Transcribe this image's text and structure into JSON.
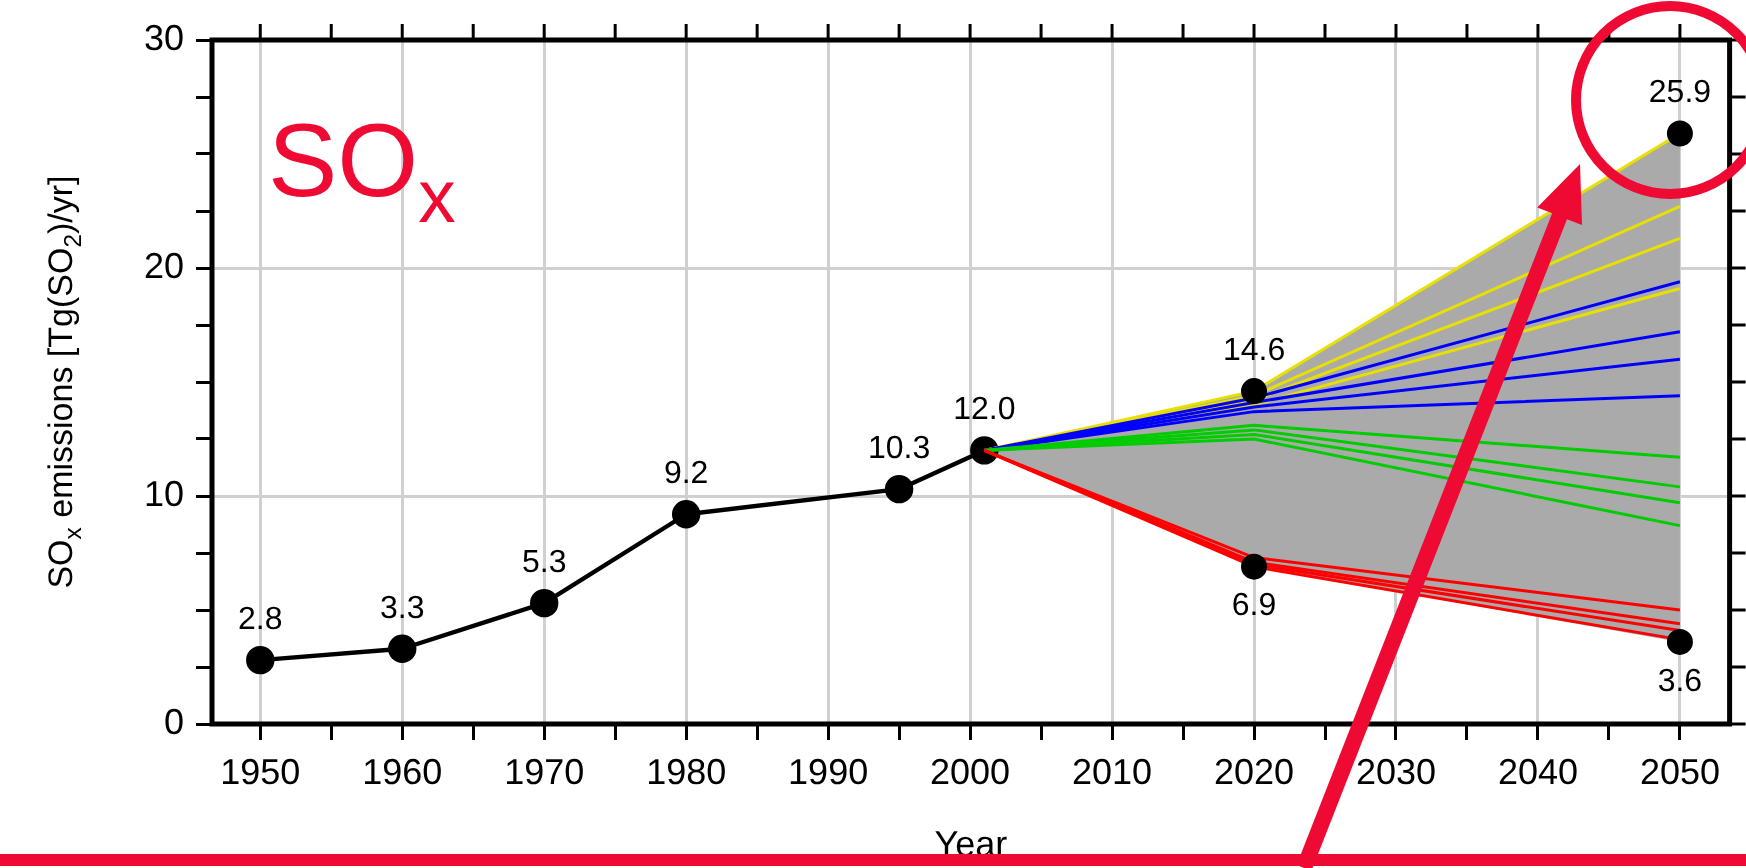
{
  "chart_data": {
    "type": "line",
    "xlabel": "Year",
    "ylabel": "SO$_{x}$ emissions [Tg(SO$_{2}$)/yr]",
    "annotations": [
      "SO$_{x}$"
    ],
    "xlim": [
      1946.6,
      2053.5
    ],
    "xticks": [
      1950,
      {
        "value": 1955,
        "label": null
      },
      1960,
      {
        "value": 1965,
        "label": null
      },
      1970,
      {
        "value": 1975,
        "label": null
      },
      1980,
      {
        "value": 1985,
        "label": null
      },
      1990,
      {
        "value": 1995,
        "label": null
      },
      2000,
      {
        "value": 2005,
        "label": null
      },
      2010,
      {
        "value": 2015,
        "label": null
      },
      2020,
      {
        "value": 2025,
        "label": null
      },
      2030,
      {
        "value": 2035,
        "label": null
      },
      2040,
      {
        "value": 2045,
        "label": null
      },
      2050
    ],
    "ylim": [
      0,
      30
    ],
    "yticks": [
      0,
      {
        "value": 2.5,
        "label": null
      },
      {
        "value": 5,
        "label": null
      },
      {
        "value": 7.5,
        "label": null
      },
      10,
      {
        "value": 12.5,
        "label": null
      },
      {
        "value": 15,
        "label": null
      },
      {
        "value": 17.5,
        "label": null
      },
      20,
      {
        "value": 22.5,
        "label": null
      },
      {
        "value": 25,
        "label": null
      },
      {
        "value": 27.5,
        "label": null
      },
      30
    ],
    "grid": true,
    "marker": "circle",
    "line_style": "solid",
    "series": [
      {
        "type": "line",
        "color": "#000000",
        "x": [
          1950,
          1960,
          1970,
          1980,
          1995,
          2001
        ],
        "values": [
          2.8,
          3.3,
          5.3,
          9.2,
          10.3,
          12.0
        ],
        "value_labels": [
          "2.8",
          "3.3",
          "5.3",
          "9.2",
          "10.3",
          "12.0"
        ]
      },
      {
        "marker": "none",
        "color": "#e8e000",
        "x": [
          2001,
          2020,
          2050
        ],
        "values": [
          12.0,
          14.6,
          25.9
        ],
        "lower": [
          12.0,
          6.9,
          3.6
        ],
        "upper": [
          12.0,
          14.6,
          25.9
        ]
      },
      {
        "type": "line",
        "marker": "none",
        "color": "#e8e000",
        "x": [
          2001,
          2020,
          2050
        ],
        "values": [
          12.0,
          14.4,
          22.7
        ]
      },
      {
        "type": "line",
        "marker": "none",
        "color": "#e8e000",
        "x": [
          2001,
          2020,
          2050
        ],
        "values": [
          12.0,
          14.2,
          21.3
        ]
      },
      {
        "type": "line",
        "marker": "none",
        "color": "#e8e000",
        "x": [
          2001,
          2020,
          2050
        ],
        "values": [
          12.0,
          14.0,
          19.1
        ]
      },
      {
        "type": "line",
        "marker": "none",
        "color": "#0000ff",
        "x": [
          2001,
          2020,
          2050
        ],
        "values": [
          12.0,
          14.3,
          19.4
        ]
      },
      {
        "type": "line",
        "marker": "none",
        "color": "#0000ff",
        "x": [
          2001,
          2020,
          2050
        ],
        "values": [
          12.0,
          14.1,
          17.2
        ]
      },
      {
        "type": "line",
        "marker": "none",
        "color": "#0000ff",
        "x": [
          2001,
          2020,
          2050
        ],
        "values": [
          12.0,
          13.9,
          16.0
        ]
      },
      {
        "type": "line",
        "marker": "none",
        "color": "#0000ff",
        "x": [
          2001,
          2020,
          2050
        ],
        "values": [
          12.0,
          13.7,
          14.4
        ]
      },
      {
        "type": "line",
        "marker": "none",
        "color": "#00cc00",
        "x": [
          2001,
          2020,
          2050
        ],
        "values": [
          12.0,
          13.1,
          11.7
        ]
      },
      {
        "type": "line",
        "marker": "none",
        "color": "#00cc00",
        "x": [
          2001,
          2020,
          2050
        ],
        "values": [
          12.0,
          12.9,
          10.4
        ]
      },
      {
        "type": "line",
        "marker": "none",
        "color": "#00cc00",
        "x": [
          2001,
          2020,
          2050
        ],
        "values": [
          12.0,
          12.7,
          9.7
        ]
      },
      {
        "type": "line",
        "marker": "none",
        "color": "#00cc00",
        "x": [
          2001,
          2020,
          2050
        ],
        "values": [
          12.0,
          12.5,
          8.7
        ]
      },
      {
        "type": "line",
        "marker": "none",
        "color": "#ff0000",
        "x": [
          2001,
          2020,
          2050
        ],
        "values": [
          12.0,
          7.3,
          5.0
        ]
      },
      {
        "type": "line",
        "marker": "none",
        "color": "#ff0000",
        "x": [
          2001,
          2020,
          2050
        ],
        "values": [
          12.0,
          7.1,
          4.4
        ]
      },
      {
        "type": "line",
        "marker": "none",
        "color": "#ff0000",
        "x": [
          2001,
          2020,
          2050
        ],
        "values": [
          12.0,
          7.0,
          4.1
        ]
      },
      {
        "type": "line",
        "marker": "none",
        "color": "#ff0000",
        "x": [
          2001,
          2020,
          2050
        ],
        "values": [
          12.0,
          6.9,
          3.7
        ]
      },
      {
        "type": "scatter",
        "color": "#000000",
        "x": [
          2020,
          2020,
          2050,
          2050
        ],
        "values": [
          14.6,
          6.9,
          25.9,
          3.6
        ],
        "value_labels": [
          "14.6",
          "6.9",
          "25.9",
          "3.6"
        ]
      }
    ]
  }
}
